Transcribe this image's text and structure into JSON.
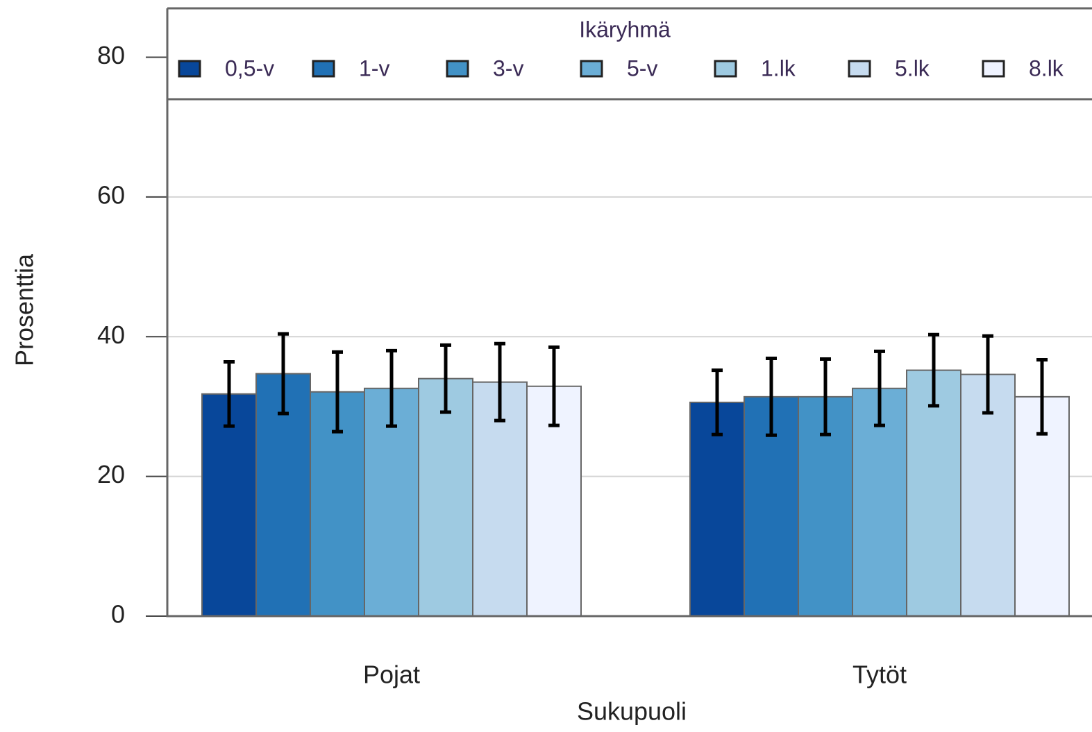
{
  "chart_data": {
    "type": "bar",
    "xlabel": "Sukupuoli",
    "ylabel": "Prosenttia",
    "legend_title": "Ikäryhmä",
    "categories": [
      "Pojat",
      "Tytöt"
    ],
    "series": [
      {
        "name": "0,5-v",
        "color": "#08479a",
        "values": [
          31.8,
          30.6
        ],
        "errors": [
          4.6,
          4.6
        ]
      },
      {
        "name": "1-v",
        "color": "#2171b5",
        "values": [
          34.7,
          31.4
        ],
        "errors": [
          5.7,
          5.5
        ]
      },
      {
        "name": "3-v",
        "color": "#4292c6",
        "values": [
          32.1,
          31.4
        ],
        "errors": [
          5.7,
          5.4
        ]
      },
      {
        "name": "5-v",
        "color": "#6baed6",
        "values": [
          32.6,
          32.6
        ],
        "errors": [
          5.4,
          5.3
        ]
      },
      {
        "name": "1.lk",
        "color": "#9ecae1",
        "values": [
          34.0,
          35.2
        ],
        "errors": [
          4.8,
          5.1
        ]
      },
      {
        "name": "5.lk",
        "color": "#c6dbef",
        "values": [
          33.5,
          34.6
        ],
        "errors": [
          5.5,
          5.5
        ]
      },
      {
        "name": "8.lk",
        "color": "#eff3ff",
        "values": [
          32.9,
          31.4
        ],
        "errors": [
          5.6,
          5.3
        ]
      }
    ],
    "ylim": [
      0,
      87
    ],
    "yticks": [
      0,
      20,
      40,
      60,
      80
    ],
    "grid": true,
    "legend": "top"
  }
}
